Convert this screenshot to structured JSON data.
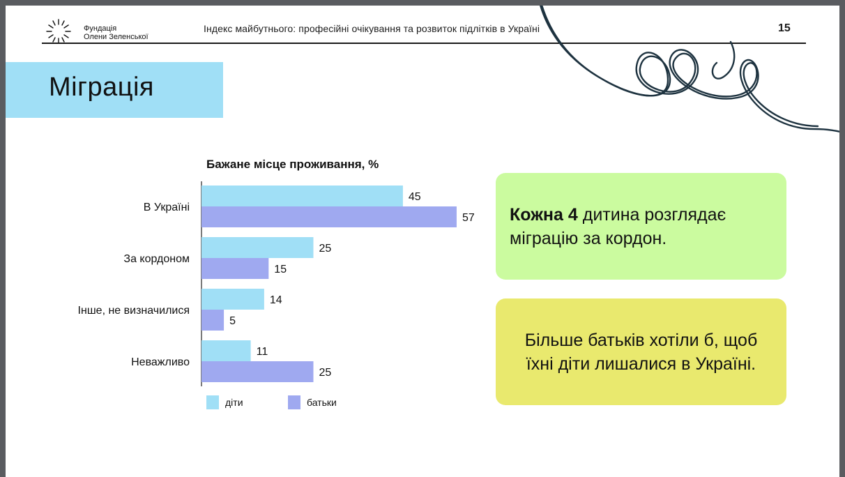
{
  "header": {
    "org_line1": "Фундація",
    "org_line2": "Олени Зеленської",
    "title": "Індекс майбутнього: професійні очікування та розвиток підлітків в Україні",
    "page_number": "15"
  },
  "section": {
    "title": "Міграція"
  },
  "chart_data": {
    "type": "bar",
    "orientation": "horizontal",
    "title": "Бажане місце проживання, %",
    "categories": [
      "В Україні",
      "За кордоном",
      "Інше, не визначилися",
      "Неважливо"
    ],
    "series": [
      {
        "name": "діти",
        "values": [
          45,
          25,
          14,
          11
        ],
        "color": "#a0dff6"
      },
      {
        "name": "батьки",
        "values": [
          57,
          15,
          5,
          25
        ],
        "color": "#9fa9f0"
      }
    ],
    "xlim": [
      0,
      60
    ],
    "grid": false,
    "legend": "bottom-left"
  },
  "callouts": [
    {
      "bold": "Кожна 4",
      "text": " дитина розглядає міграцію за кордон.",
      "color": "#cbfb9f"
    },
    {
      "text": "Більше батьків хотіли б, щоб їхні діти лишалися в Україні.",
      "color": "#e9e96e"
    }
  ]
}
